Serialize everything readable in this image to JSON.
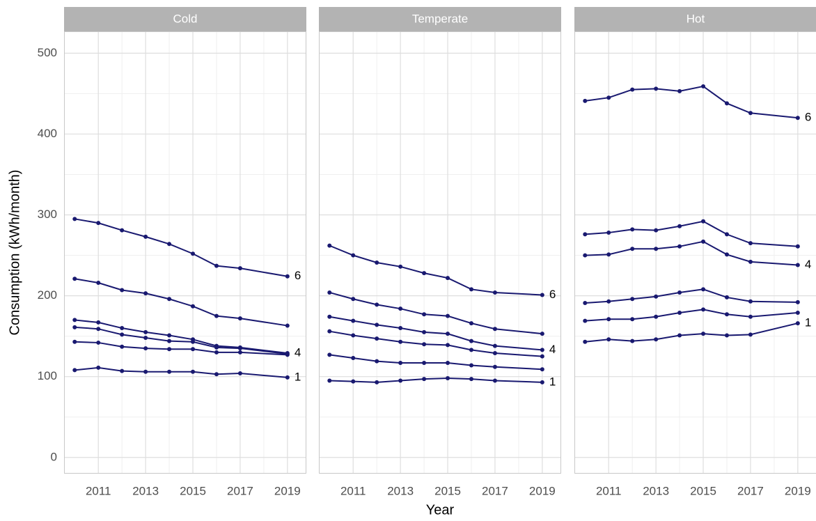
{
  "chart_data": [
    {
      "type": "line",
      "title": "Cold",
      "y_label": "Consumption (kWh/month)",
      "x": [
        2010,
        2011,
        2012,
        2013,
        2014,
        2015,
        2016,
        2017,
        2019
      ],
      "xlim": [
        2009.55,
        2019.8
      ],
      "xticks": [
        2011,
        2013,
        2015,
        2017,
        2019
      ],
      "ylim": [
        -20,
        527
      ],
      "yticks": [
        0,
        100,
        200,
        300,
        400,
        500
      ],
      "grid": true,
      "color": "#191970",
      "series": [
        {
          "name": "6",
          "values": [
            295,
            290,
            281,
            273,
            264,
            252,
            237,
            234,
            224
          ]
        },
        {
          "values": [
            221,
            216,
            207,
            203,
            196,
            187,
            175,
            172,
            163
          ]
        },
        {
          "name": "4",
          "values": [
            170,
            167,
            160,
            155,
            151,
            146,
            138,
            136,
            129
          ]
        },
        {
          "values": [
            161,
            159,
            152,
            148,
            144,
            143,
            136,
            135,
            128
          ]
        },
        {
          "values": [
            143,
            142,
            137,
            135,
            134,
            134,
            130,
            130,
            127
          ]
        },
        {
          "name": "1",
          "values": [
            108,
            111,
            107,
            106,
            106,
            106,
            103,
            104,
            99
          ]
        }
      ]
    },
    {
      "type": "line",
      "title": "Temperate",
      "x_label": "Year",
      "x": [
        2010,
        2011,
        2012,
        2013,
        2014,
        2015,
        2016,
        2017,
        2019
      ],
      "xlim": [
        2009.55,
        2019.8
      ],
      "xticks": [
        2011,
        2013,
        2015,
        2017,
        2019
      ],
      "ylim": [
        -20,
        527
      ],
      "yticks": [
        0,
        100,
        200,
        300,
        400,
        500
      ],
      "grid": true,
      "color": "#191970",
      "series": [
        {
          "name": "6",
          "values": [
            262,
            250,
            241,
            236,
            228,
            222,
            208,
            204,
            201
          ]
        },
        {
          "values": [
            204,
            196,
            189,
            184,
            177,
            175,
            166,
            159,
            153
          ]
        },
        {
          "name": "4",
          "values": [
            174,
            169,
            164,
            160,
            155,
            153,
            144,
            138,
            133
          ]
        },
        {
          "values": [
            156,
            151,
            147,
            143,
            140,
            139,
            133,
            129,
            125
          ]
        },
        {
          "values": [
            127,
            123,
            119,
            117,
            117,
            117,
            114,
            112,
            109
          ]
        },
        {
          "name": "1",
          "values": [
            95,
            94,
            93,
            95,
            97,
            98,
            97,
            95,
            93
          ]
        }
      ]
    },
    {
      "type": "line",
      "title": "Hot",
      "x": [
        2010,
        2011,
        2012,
        2013,
        2014,
        2015,
        2016,
        2017,
        2019
      ],
      "xlim": [
        2009.55,
        2019.8
      ],
      "xticks": [
        2011,
        2013,
        2015,
        2017,
        2019
      ],
      "ylim": [
        -20,
        527
      ],
      "yticks": [
        0,
        100,
        200,
        300,
        400,
        500
      ],
      "grid": true,
      "color": "#191970",
      "series": [
        {
          "name": "6",
          "values": [
            441,
            445,
            455,
            456,
            453,
            459,
            438,
            426,
            420
          ]
        },
        {
          "values": [
            276,
            278,
            282,
            281,
            286,
            292,
            276,
            265,
            261
          ]
        },
        {
          "name": "4",
          "values": [
            250,
            251,
            258,
            258,
            261,
            267,
            251,
            242,
            238
          ]
        },
        {
          "values": [
            191,
            193,
            196,
            199,
            204,
            208,
            198,
            193,
            192
          ]
        },
        {
          "values": [
            169,
            171,
            171,
            174,
            179,
            183,
            177,
            174,
            179
          ]
        },
        {
          "name": "1",
          "values": [
            143,
            146,
            144,
            146,
            151,
            153,
            151,
            152,
            166
          ]
        }
      ]
    }
  ]
}
